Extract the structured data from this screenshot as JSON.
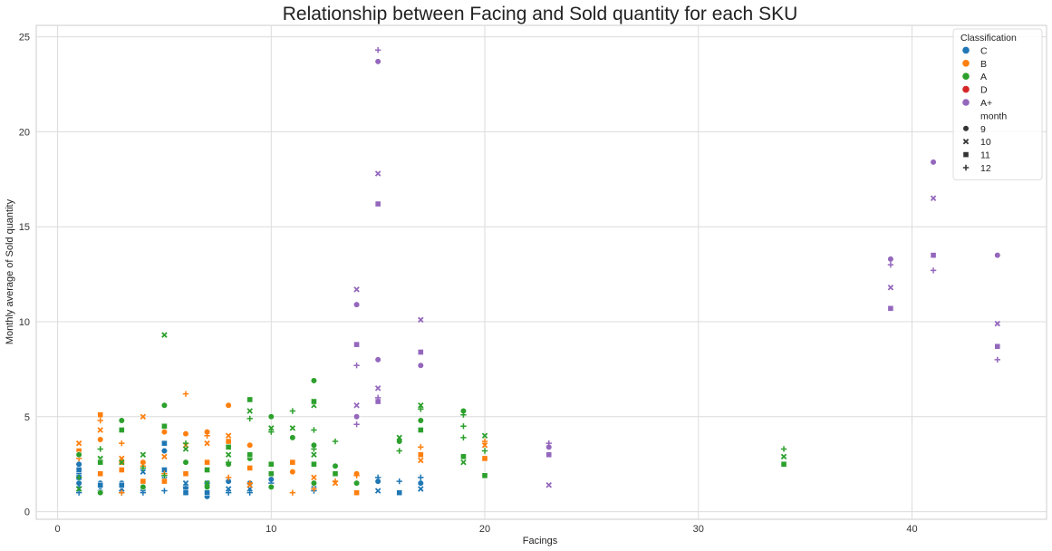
{
  "chart_data": {
    "type": "scatter",
    "title": "Relationship between Facing and Sold quantity for each SKU",
    "xlabel": "Facings",
    "ylabel": "Monthly average of Sold quantity",
    "xlim": [
      -1,
      46.3
    ],
    "ylim": [
      -0.4,
      25.6
    ],
    "xticks": [
      0,
      10,
      20,
      30,
      40
    ],
    "yticks": [
      0,
      5,
      10,
      15,
      20,
      25
    ],
    "grid": true,
    "legend": {
      "position": "top-right",
      "hue_title": "Classification",
      "style_title": "month",
      "hue_entries": [
        {
          "name": "C",
          "color": "#1f77b4"
        },
        {
          "name": "B",
          "color": "#ff7f0e"
        },
        {
          "name": "A",
          "color": "#2ca02c"
        },
        {
          "name": "D",
          "color": "#d62728"
        },
        {
          "name": "A+",
          "color": "#9467bd"
        }
      ],
      "style_entries": [
        {
          "name": "9",
          "marker": "circle"
        },
        {
          "name": "10",
          "marker": "x"
        },
        {
          "name": "11",
          "marker": "square"
        },
        {
          "name": "12",
          "marker": "plus"
        }
      ]
    },
    "series": [
      {
        "name": "C",
        "color": "#1f77b4",
        "points": [
          [
            1,
            2.5,
            "9"
          ],
          [
            1,
            2.0,
            "9"
          ],
          [
            1,
            1.5,
            "9"
          ],
          [
            1,
            2.4,
            "10"
          ],
          [
            1,
            1.2,
            "10"
          ],
          [
            1,
            1.8,
            "11"
          ],
          [
            1,
            2.2,
            "11"
          ],
          [
            1,
            1.0,
            "12"
          ],
          [
            1,
            1.3,
            "12"
          ],
          [
            2,
            1.5,
            "9"
          ],
          [
            2,
            1.2,
            "10"
          ],
          [
            2,
            1.4,
            "11"
          ],
          [
            2,
            1.0,
            "12"
          ],
          [
            3,
            1.5,
            "9"
          ],
          [
            3,
            1.2,
            "10"
          ],
          [
            3,
            1.4,
            "11"
          ],
          [
            3,
            1.0,
            "12"
          ],
          [
            4,
            1.6,
            "9"
          ],
          [
            4,
            2.1,
            "10"
          ],
          [
            4,
            1.2,
            "11"
          ],
          [
            4,
            1.0,
            "12"
          ],
          [
            5,
            3.2,
            "9"
          ],
          [
            5,
            1.7,
            "10"
          ],
          [
            5,
            3.6,
            "11"
          ],
          [
            5,
            2.2,
            "11"
          ],
          [
            5,
            1.1,
            "12"
          ],
          [
            6,
            1.2,
            "9"
          ],
          [
            6,
            1.5,
            "10"
          ],
          [
            6,
            1.0,
            "11"
          ],
          [
            6,
            1.3,
            "12"
          ],
          [
            7,
            0.8,
            "9"
          ],
          [
            7,
            1.2,
            "10"
          ],
          [
            7,
            1.0,
            "11"
          ],
          [
            7,
            1.5,
            "12"
          ],
          [
            8,
            1.6,
            "9"
          ],
          [
            8,
            1.2,
            "10"
          ],
          [
            8,
            1.0,
            "12"
          ],
          [
            9,
            1.5,
            "9"
          ],
          [
            9,
            1.2,
            "10"
          ],
          [
            9,
            1.0,
            "12"
          ],
          [
            10,
            1.7,
            "9"
          ],
          [
            10,
            1.5,
            "12"
          ],
          [
            12,
            1.4,
            "10"
          ],
          [
            12,
            1.1,
            "12"
          ],
          [
            15,
            1.6,
            "9"
          ],
          [
            15,
            1.1,
            "10"
          ],
          [
            15,
            1.8,
            "12"
          ],
          [
            16,
            1.0,
            "11"
          ],
          [
            16,
            1.6,
            "12"
          ],
          [
            17,
            1.5,
            "9"
          ],
          [
            17,
            1.2,
            "10"
          ],
          [
            17,
            1.8,
            "12"
          ]
        ]
      },
      {
        "name": "B",
        "color": "#ff7f0e",
        "points": [
          [
            1,
            3.0,
            "9"
          ],
          [
            1,
            3.6,
            "10"
          ],
          [
            1,
            3.2,
            "11"
          ],
          [
            1,
            2.8,
            "12"
          ],
          [
            2,
            3.8,
            "9"
          ],
          [
            2,
            4.3,
            "10"
          ],
          [
            2,
            5.1,
            "11"
          ],
          [
            2,
            2.0,
            "11"
          ],
          [
            2,
            4.8,
            "12"
          ],
          [
            3,
            2.6,
            "9"
          ],
          [
            3,
            2.8,
            "10"
          ],
          [
            3,
            2.2,
            "11"
          ],
          [
            3,
            3.6,
            "12"
          ],
          [
            3,
            1.0,
            "12"
          ],
          [
            4,
            2.6,
            "9"
          ],
          [
            4,
            5.0,
            "10"
          ],
          [
            4,
            1.6,
            "11"
          ],
          [
            4,
            2.4,
            "12"
          ],
          [
            5,
            4.2,
            "9"
          ],
          [
            5,
            2.9,
            "10"
          ],
          [
            5,
            1.6,
            "11"
          ],
          [
            5,
            2.0,
            "12"
          ],
          [
            6,
            4.1,
            "9"
          ],
          [
            6,
            3.5,
            "10"
          ],
          [
            6,
            2.0,
            "11"
          ],
          [
            6,
            6.2,
            "12"
          ],
          [
            7,
            4.2,
            "9"
          ],
          [
            7,
            3.6,
            "10"
          ],
          [
            7,
            2.6,
            "11"
          ],
          [
            7,
            4.0,
            "12"
          ],
          [
            8,
            5.6,
            "9"
          ],
          [
            8,
            4.0,
            "10"
          ],
          [
            8,
            3.7,
            "11"
          ],
          [
            8,
            1.8,
            "12"
          ],
          [
            9,
            3.5,
            "9"
          ],
          [
            9,
            1.4,
            "10"
          ],
          [
            9,
            2.3,
            "11"
          ],
          [
            9,
            1.5,
            "12"
          ],
          [
            11,
            2.1,
            "9"
          ],
          [
            11,
            2.6,
            "11"
          ],
          [
            11,
            1.0,
            "12"
          ],
          [
            12,
            1.8,
            "10"
          ],
          [
            12,
            1.2,
            "12"
          ],
          [
            13,
            1.5,
            "10"
          ],
          [
            13,
            1.6,
            "12"
          ],
          [
            14,
            2.0,
            "9"
          ],
          [
            14,
            1.0,
            "11"
          ],
          [
            14,
            1.9,
            "12"
          ],
          [
            17,
            3.0,
            "11"
          ],
          [
            17,
            3.4,
            "12"
          ],
          [
            17,
            2.7,
            "10"
          ],
          [
            20,
            3.5,
            "10"
          ],
          [
            20,
            2.8,
            "11"
          ],
          [
            20,
            3.7,
            "12"
          ]
        ]
      },
      {
        "name": "A",
        "color": "#2ca02c",
        "points": [
          [
            1,
            3.0,
            "9"
          ],
          [
            1,
            1.2,
            "10"
          ],
          [
            1,
            1.8,
            "12"
          ],
          [
            2,
            1.0,
            "9"
          ],
          [
            2,
            2.8,
            "10"
          ],
          [
            2,
            2.6,
            "11"
          ],
          [
            2,
            3.3,
            "12"
          ],
          [
            3,
            4.8,
            "9"
          ],
          [
            3,
            2.6,
            "10"
          ],
          [
            3,
            4.3,
            "11"
          ],
          [
            4,
            1.3,
            "9"
          ],
          [
            4,
            3.0,
            "10"
          ],
          [
            4,
            2.3,
            "12"
          ],
          [
            5,
            5.6,
            "9"
          ],
          [
            5,
            9.3,
            "10"
          ],
          [
            5,
            4.5,
            "11"
          ],
          [
            5,
            1.9,
            "12"
          ],
          [
            6,
            2.6,
            "9"
          ],
          [
            6,
            3.3,
            "10"
          ],
          [
            6,
            3.6,
            "12"
          ],
          [
            7,
            1.3,
            "9"
          ],
          [
            7,
            1.5,
            "10"
          ],
          [
            7,
            2.2,
            "11"
          ],
          [
            8,
            2.5,
            "9"
          ],
          [
            8,
            3.0,
            "10"
          ],
          [
            8,
            3.4,
            "11"
          ],
          [
            8,
            2.6,
            "12"
          ],
          [
            9,
            2.8,
            "9"
          ],
          [
            9,
            5.3,
            "10"
          ],
          [
            9,
            5.9,
            "11"
          ],
          [
            9,
            3.0,
            "11"
          ],
          [
            9,
            4.9,
            "12"
          ],
          [
            10,
            5.0,
            "9"
          ],
          [
            10,
            1.3,
            "9"
          ],
          [
            10,
            4.4,
            "10"
          ],
          [
            10,
            2.5,
            "11"
          ],
          [
            10,
            2.0,
            "11"
          ],
          [
            10,
            4.2,
            "12"
          ],
          [
            11,
            3.9,
            "9"
          ],
          [
            11,
            4.4,
            "10"
          ],
          [
            11,
            5.3,
            "12"
          ],
          [
            12,
            6.9,
            "9"
          ],
          [
            12,
            3.5,
            "9"
          ],
          [
            12,
            1.5,
            "9"
          ],
          [
            12,
            5.6,
            "10"
          ],
          [
            12,
            3.0,
            "10"
          ],
          [
            12,
            5.8,
            "11"
          ],
          [
            12,
            2.5,
            "11"
          ],
          [
            12,
            4.3,
            "12"
          ],
          [
            12,
            3.3,
            "12"
          ],
          [
            13,
            2.4,
            "9"
          ],
          [
            13,
            2.0,
            "11"
          ],
          [
            13,
            3.7,
            "12"
          ],
          [
            14,
            1.5,
            "9"
          ],
          [
            16,
            3.7,
            "9"
          ],
          [
            16,
            3.9,
            "10"
          ],
          [
            16,
            3.2,
            "12"
          ],
          [
            17,
            4.8,
            "9"
          ],
          [
            17,
            5.6,
            "10"
          ],
          [
            17,
            4.3,
            "11"
          ],
          [
            17,
            5.4,
            "12"
          ],
          [
            19,
            5.3,
            "9"
          ],
          [
            19,
            2.6,
            "10"
          ],
          [
            19,
            2.9,
            "11"
          ],
          [
            19,
            5.1,
            "12"
          ],
          [
            19,
            4.5,
            "12"
          ],
          [
            19,
            3.9,
            "12"
          ],
          [
            20,
            4.0,
            "10"
          ],
          [
            20,
            1.9,
            "11"
          ],
          [
            20,
            3.2,
            "12"
          ],
          [
            34,
            2.9,
            "10"
          ],
          [
            34,
            2.5,
            "11"
          ],
          [
            34,
            3.3,
            "12"
          ]
        ]
      },
      {
        "name": "D",
        "color": "#d62728",
        "points": []
      },
      {
        "name": "A+",
        "color": "#9467bd",
        "points": [
          [
            14,
            10.9,
            "9"
          ],
          [
            14,
            5.0,
            "9"
          ],
          [
            14,
            11.7,
            "10"
          ],
          [
            14,
            5.6,
            "10"
          ],
          [
            14,
            8.8,
            "11"
          ],
          [
            14,
            7.7,
            "12"
          ],
          [
            14,
            4.6,
            "12"
          ],
          [
            15,
            23.7,
            "9"
          ],
          [
            15,
            8.0,
            "9"
          ],
          [
            15,
            17.8,
            "10"
          ],
          [
            15,
            6.5,
            "10"
          ],
          [
            15,
            16.2,
            "11"
          ],
          [
            15,
            5.8,
            "11"
          ],
          [
            15,
            24.3,
            "12"
          ],
          [
            15,
            6.0,
            "12"
          ],
          [
            17,
            7.7,
            "9"
          ],
          [
            17,
            10.1,
            "10"
          ],
          [
            17,
            8.4,
            "11"
          ],
          [
            23,
            3.4,
            "9"
          ],
          [
            23,
            1.4,
            "10"
          ],
          [
            23,
            3.0,
            "11"
          ],
          [
            23,
            3.6,
            "12"
          ],
          [
            39,
            13.3,
            "9"
          ],
          [
            39,
            11.8,
            "10"
          ],
          [
            39,
            10.7,
            "11"
          ],
          [
            39,
            13.0,
            "12"
          ],
          [
            41,
            18.4,
            "9"
          ],
          [
            41,
            16.5,
            "10"
          ],
          [
            41,
            13.5,
            "11"
          ],
          [
            41,
            12.7,
            "12"
          ],
          [
            44,
            13.5,
            "9"
          ],
          [
            44,
            9.9,
            "10"
          ],
          [
            44,
            8.7,
            "11"
          ],
          [
            44,
            8.0,
            "12"
          ]
        ]
      }
    ]
  }
}
